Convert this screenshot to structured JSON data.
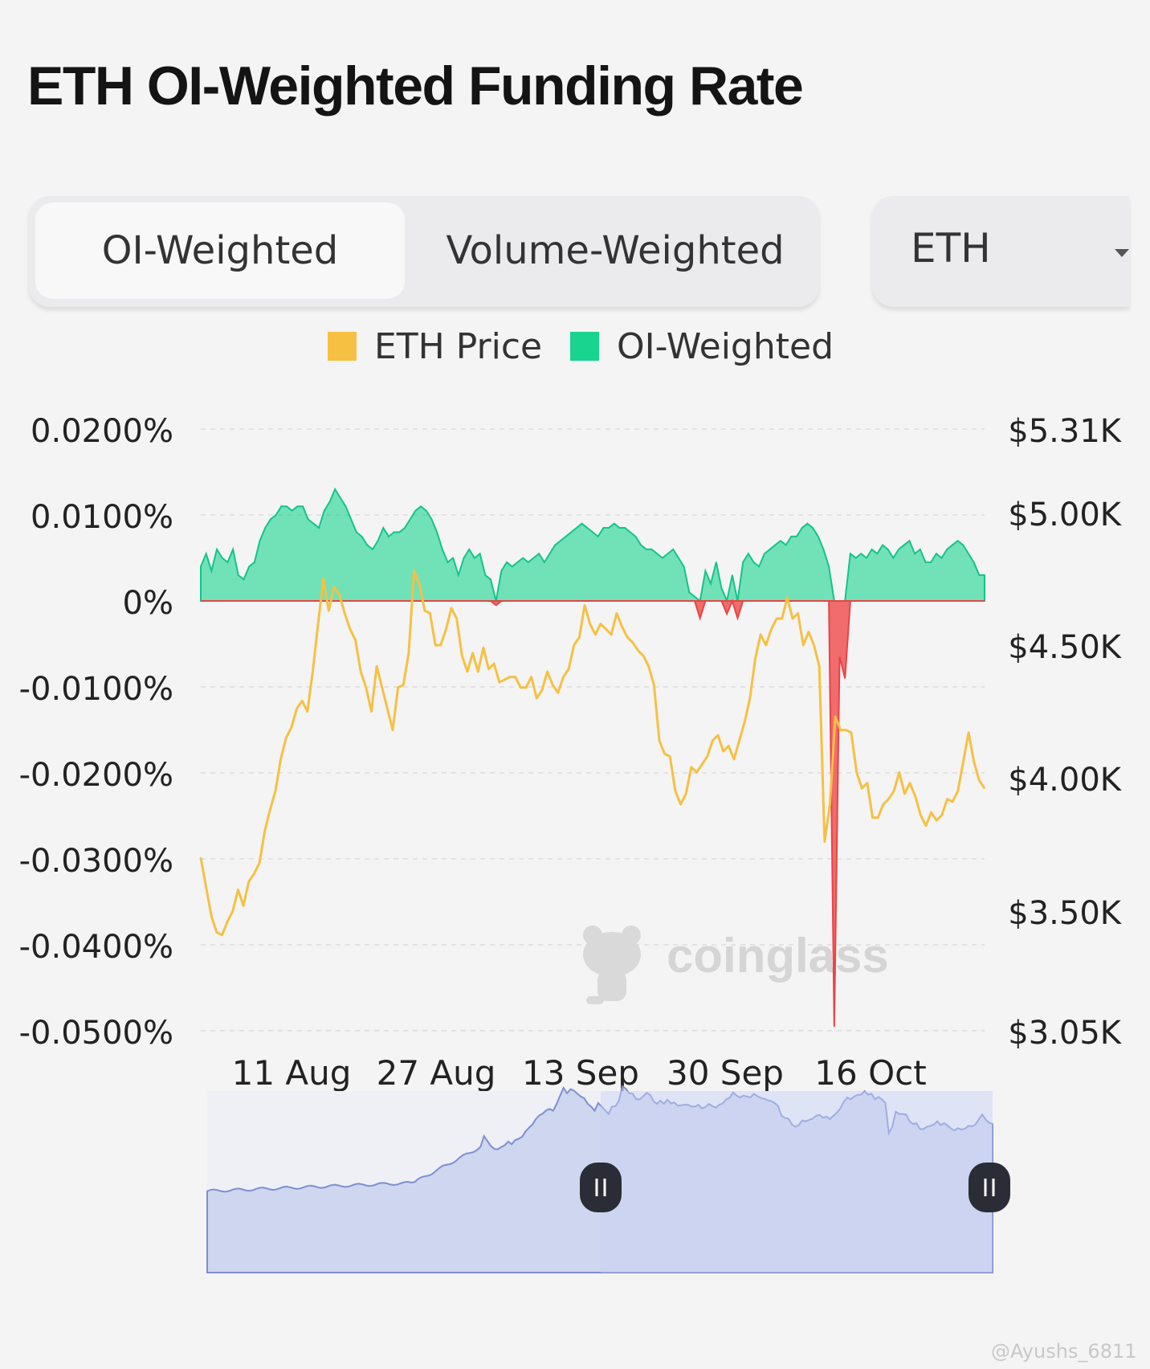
{
  "title": "ETH OI-Weighted Funding Rate",
  "tabs": {
    "oi_weighted": "OI-Weighted",
    "volume_weighted": "Volume-Weighted"
  },
  "symbol_select": {
    "value": "ETH"
  },
  "legend": [
    {
      "label": "ETH Price",
      "color": "#f6c043"
    },
    {
      "label": "OI-Weighted",
      "color": "#19d48f"
    }
  ],
  "watermark": "coinglass",
  "footer": "@Ayushs_6811",
  "chart_data": {
    "type": "line",
    "left_axis": {
      "ticks": [
        "0.0200%",
        "0.0100%",
        "0%",
        "-0.0100%",
        "-0.0200%",
        "-0.0300%",
        "-0.0400%",
        "-0.0500%"
      ],
      "range": [
        -0.05,
        0.02
      ],
      "unit": "%"
    },
    "right_axis": {
      "ticks": [
        "$5.31K",
        "$5.00K",
        "$4.50K",
        "$4.00K",
        "$3.50K",
        "$3.05K"
      ],
      "range": [
        3050,
        5310
      ]
    },
    "x_ticks": [
      "11 Aug",
      "27 Aug",
      "13 Sep",
      "30 Sep",
      "16 Oct"
    ],
    "grid": true,
    "legend_position": "top-center",
    "series": [
      {
        "name": "ETH Price",
        "axis": "right",
        "color": "#f6c043",
        "values": [
          3700,
          3590,
          3480,
          3420,
          3410,
          3460,
          3500,
          3580,
          3520,
          3610,
          3640,
          3680,
          3800,
          3880,
          3950,
          4070,
          4150,
          4190,
          4260,
          4290,
          4250,
          4400,
          4580,
          4750,
          4630,
          4720,
          4690,
          4620,
          4560,
          4520,
          4400,
          4340,
          4250,
          4420,
          4340,
          4260,
          4180,
          4340,
          4350,
          4470,
          4780,
          4730,
          4630,
          4620,
          4500,
          4500,
          4560,
          4640,
          4600,
          4460,
          4400,
          4470,
          4400,
          4490,
          4410,
          4430,
          4360,
          4370,
          4380,
          4380,
          4340,
          4340,
          4380,
          4300,
          4330,
          4400,
          4350,
          4320,
          4380,
          4410,
          4500,
          4530,
          4650,
          4580,
          4540,
          4580,
          4560,
          4540,
          4620,
          4570,
          4530,
          4510,
          4480,
          4460,
          4420,
          4350,
          4140,
          4090,
          4080,
          3950,
          3900,
          3940,
          4040,
          4020,
          4050,
          4080,
          4140,
          4160,
          4100,
          4120,
          4070,
          4140,
          4210,
          4300,
          4450,
          4540,
          4500,
          4560,
          4600,
          4600,
          4680,
          4600,
          4620,
          4500,
          4550,
          4500,
          4420,
          3760,
          3900,
          4230,
          4180,
          4180,
          4170,
          4020,
          3960,
          3980,
          3850,
          3850,
          3900,
          3920,
          3950,
          4020,
          3940,
          3980,
          3930,
          3860,
          3820,
          3870,
          3840,
          3860,
          3920,
          3910,
          3950,
          4060,
          4170,
          4060,
          3990,
          3960
        ],
        "x_start": "2025-07-27",
        "x_end": "2025-10-24"
      },
      {
        "name": "OI-Weighted",
        "axis": "left",
        "color": "#19d48f",
        "negative_color": "#f05454",
        "values": [
          0.004,
          0.0055,
          0.0035,
          0.006,
          0.005,
          0.0045,
          0.006,
          0.003,
          0.0025,
          0.004,
          0.0045,
          0.007,
          0.0085,
          0.0095,
          0.01,
          0.011,
          0.011,
          0.0105,
          0.011,
          0.011,
          0.0095,
          0.009,
          0.0085,
          0.0105,
          0.0115,
          0.013,
          0.012,
          0.011,
          0.0095,
          0.008,
          0.0075,
          0.0065,
          0.006,
          0.007,
          0.0085,
          0.0075,
          0.008,
          0.008,
          0.0085,
          0.0095,
          0.0105,
          0.011,
          0.0105,
          0.0095,
          0.008,
          0.006,
          0.0045,
          0.005,
          0.003,
          0.005,
          0.006,
          0.005,
          0.0055,
          0.003,
          0.0025,
          -0.0005,
          0.0035,
          0.0045,
          0.004,
          0.0045,
          0.005,
          0.0045,
          0.005,
          0.0055,
          0.0045,
          0.0055,
          0.0065,
          0.007,
          0.0075,
          0.008,
          0.0085,
          0.009,
          0.0085,
          0.008,
          0.0075,
          0.0085,
          0.0085,
          0.009,
          0.0085,
          0.0085,
          0.008,
          0.0075,
          0.0065,
          0.006,
          0.006,
          0.0055,
          0.005,
          0.0055,
          0.006,
          0.005,
          0.004,
          0.001,
          0.0005,
          -0.002,
          0.0035,
          0.002,
          0.0045,
          0.0015,
          -0.0015,
          0.003,
          -0.002,
          0.0045,
          0.0055,
          0.0045,
          0.004,
          0.0055,
          0.006,
          0.0065,
          0.007,
          0.0065,
          0.0075,
          0.0075,
          0.0085,
          0.009,
          0.0085,
          0.0075,
          0.006,
          0.004,
          -0.0495,
          -0.0065,
          -0.009,
          0.0055,
          0.005,
          0.0055,
          0.005,
          0.006,
          0.0055,
          0.0065,
          0.006,
          0.005,
          0.006,
          0.0065,
          0.007,
          0.0055,
          0.006,
          0.0045,
          0.0045,
          0.0055,
          0.005,
          0.006,
          0.0065,
          0.007,
          0.0065,
          0.0055,
          0.0045,
          0.003,
          0.003
        ],
        "x_start": "2025-07-27",
        "x_end": "2025-10-24"
      }
    ],
    "navigator": {
      "series": "ETH Price",
      "selected_range": [
        "2025-07-27",
        "2025-10-24"
      ]
    }
  }
}
